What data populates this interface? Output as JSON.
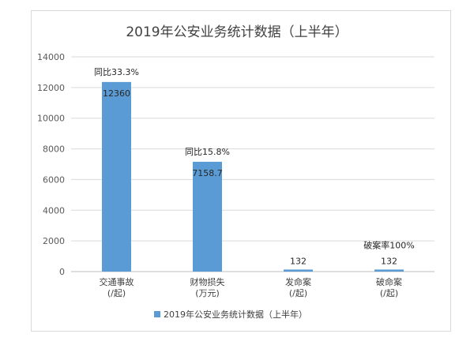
{
  "chart_data": {
    "type": "bar",
    "title": "2019年公安业务统计数据（上半年）",
    "categories": [
      [
        "交通事故",
        "(/起)"
      ],
      [
        "财物损失",
        "(万元)"
      ],
      [
        "发命案",
        "(/起)"
      ],
      [
        "破命案",
        "(/起)"
      ]
    ],
    "series": [
      {
        "name": "2019年公安业务统计数据（上半年）",
        "values": [
          12360,
          7158.7,
          132,
          132
        ],
        "value_labels": [
          "12360",
          "7158.7",
          "132",
          "132"
        ],
        "color": "#5b9bd5"
      }
    ],
    "annotations": [
      "同比33.3%",
      "同比15.8%",
      "",
      "破案率100%"
    ],
    "yticks": [
      "0",
      "2000",
      "4000",
      "6000",
      "8000",
      "10000",
      "12000",
      "14000"
    ],
    "ylim": [
      0,
      14000
    ],
    "grid": true,
    "legend_position": "bottom"
  }
}
